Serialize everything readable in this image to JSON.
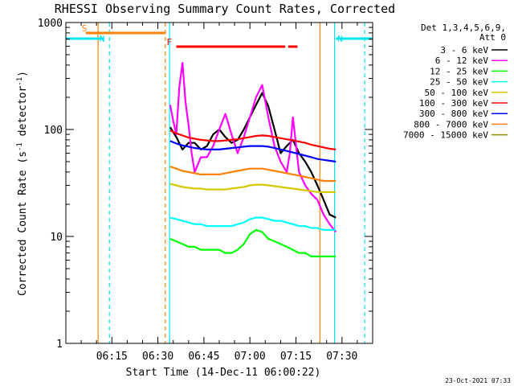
{
  "chart_data": {
    "type": "line",
    "title": "RHESSI Observing Summary Count Rates, Corrected",
    "xlabel": "Start Time (14-Dec-11 06:00:22)",
    "ylabel": "Corrected Count Rate (s",
    "ylabel_sup1": "-1",
    "ylabel_mid": " detector",
    "ylabel_sup2": "-1",
    "ylabel_end": ")",
    "y_scale": "log",
    "ylim": [
      1,
      1000
    ],
    "xlim_minutes": [
      0,
      100
    ],
    "x_tick_minutes": [
      15,
      30,
      45,
      60,
      75,
      90
    ],
    "x_tick_labels": [
      "06:15",
      "06:30",
      "06:45",
      "07:00",
      "07:15",
      "07:30"
    ],
    "y_tick_values": [
      1,
      10,
      100,
      1000
    ],
    "y_tick_labels": [
      "1",
      "10",
      "100",
      "1000"
    ],
    "legend": {
      "header1": "Det 1,3,4,5,6,9,",
      "header2": "Att 0",
      "placement": "right"
    },
    "timestamp": "23-Oct-2021 07:33",
    "flags": [
      {
        "label": "S",
        "color": "#ff7f00",
        "start_min": 6.5,
        "end_min": 32.5
      },
      {
        "label": "N",
        "color": "#00e5ee",
        "start_min": 0,
        "end_min": 12.5
      },
      {
        "label": "N",
        "color": "#00e5ee",
        "start_min": 88,
        "end_min": 100
      },
      {
        "label": "F",
        "color": "#ff0000",
        "start_min": 36,
        "end_min": 71.5
      },
      {
        "label": "",
        "color": "#ff0000",
        "start_min": 72.5,
        "end_min": 75.5
      }
    ],
    "vlines": [
      {
        "min": 10.5,
        "color": "#ff7f00",
        "style": "solid"
      },
      {
        "min": 14.2,
        "color": "#00e5ee",
        "style": "dashed"
      },
      {
        "min": 32.4,
        "color": "#ff7f00",
        "style": "dashed"
      },
      {
        "min": 33.8,
        "color": "#00e5ee",
        "style": "solid"
      },
      {
        "min": 82.8,
        "color": "#ff7f00",
        "style": "solid"
      },
      {
        "min": 87.6,
        "color": "#00e5ee",
        "style": "solid"
      },
      {
        "min": 97.4,
        "color": "#00e5ee",
        "style": "dashed"
      }
    ],
    "series": [
      {
        "name": "3 - 6 keV",
        "color": "#000000",
        "x": [
          34,
          36,
          38,
          40,
          42,
          44,
          46,
          48,
          50,
          52,
          54,
          56,
          58,
          60,
          62,
          64,
          66,
          68,
          70,
          72,
          74,
          76,
          78,
          80,
          82,
          84,
          86,
          88
        ],
        "y": [
          105,
          85,
          65,
          75,
          75,
          65,
          70,
          90,
          100,
          85,
          75,
          80,
          100,
          130,
          170,
          220,
          165,
          100,
          60,
          70,
          80,
          60,
          50,
          40,
          30,
          22,
          16,
          15
        ]
      },
      {
        "name": "6 - 12 keV",
        "color": "#ff00ff",
        "x": [
          34,
          35,
          36,
          37,
          38,
          39,
          40,
          41,
          42,
          44,
          46,
          48,
          50,
          52,
          54,
          56,
          58,
          60,
          62,
          64,
          66,
          68,
          70,
          72,
          73,
          74,
          76,
          78,
          80,
          82,
          84,
          86,
          88
        ],
        "y": [
          170,
          120,
          90,
          250,
          420,
          180,
          110,
          60,
          40,
          55,
          55,
          70,
          100,
          140,
          90,
          60,
          85,
          130,
          200,
          260,
          130,
          70,
          50,
          40,
          60,
          130,
          40,
          30,
          25,
          22,
          16,
          13,
          11
        ]
      },
      {
        "name": "12 - 25 keV",
        "color": "#00ff00",
        "x": [
          34,
          36,
          38,
          40,
          42,
          44,
          46,
          48,
          50,
          52,
          54,
          56,
          58,
          60,
          62,
          64,
          66,
          68,
          70,
          72,
          74,
          76,
          78,
          80,
          82,
          84,
          86,
          88
        ],
        "y": [
          9.5,
          9,
          8.5,
          8,
          8,
          7.5,
          7.5,
          7.5,
          7.5,
          7,
          7,
          7.5,
          8.5,
          10.5,
          11.5,
          11,
          9.5,
          9,
          8.5,
          8,
          7.5,
          7,
          7,
          6.5,
          6.5,
          6.5,
          6.5,
          6.5
        ]
      },
      {
        "name": "25 - 50 keV",
        "color": "#00ffff",
        "x": [
          34,
          36,
          38,
          40,
          42,
          44,
          46,
          48,
          50,
          52,
          54,
          56,
          58,
          60,
          62,
          64,
          66,
          68,
          70,
          72,
          74,
          76,
          78,
          80,
          82,
          84,
          86,
          88
        ],
        "y": [
          15,
          14.5,
          14,
          13.5,
          13,
          13,
          12.5,
          12.5,
          12.5,
          12.5,
          12.5,
          13,
          13.5,
          14.5,
          15,
          15,
          14.5,
          14,
          14,
          13.5,
          13,
          12.5,
          12.5,
          12,
          12,
          11.5,
          11.5,
          11.5
        ]
      },
      {
        "name": "50 - 100 keV",
        "color": "#d4c800",
        "x": [
          34,
          36,
          38,
          40,
          42,
          44,
          46,
          48,
          50,
          52,
          54,
          56,
          58,
          60,
          62,
          64,
          66,
          68,
          70,
          72,
          74,
          76,
          78,
          80,
          82,
          84,
          86,
          88
        ],
        "y": [
          31,
          30,
          29,
          28.5,
          28,
          28,
          27.5,
          27.5,
          27.5,
          27.5,
          28,
          28.5,
          29,
          30,
          30.5,
          30.5,
          30,
          29.5,
          29,
          28.5,
          28,
          27.5,
          27,
          26.5,
          26,
          26,
          26,
          26
        ]
      },
      {
        "name": "100 - 300 keV",
        "color": "#ff0000",
        "x": [
          34,
          36,
          38,
          40,
          42,
          44,
          46,
          48,
          50,
          52,
          54,
          56,
          58,
          60,
          62,
          64,
          66,
          68,
          70,
          72,
          74,
          76,
          78,
          80,
          82,
          84,
          86,
          88
        ],
        "y": [
          98,
          92,
          88,
          84,
          82,
          80,
          79,
          78,
          78,
          79,
          80,
          81,
          83,
          85,
          87,
          88,
          87,
          85,
          83,
          81,
          79,
          77,
          75,
          72,
          70,
          68,
          66,
          65
        ]
      },
      {
        "name": "300 - 800 keV",
        "color": "#0000ff",
        "x": [
          34,
          36,
          38,
          40,
          42,
          44,
          46,
          48,
          50,
          52,
          54,
          56,
          58,
          60,
          62,
          64,
          66,
          68,
          70,
          72,
          74,
          76,
          78,
          80,
          82,
          84,
          86,
          88
        ],
        "y": [
          78,
          74,
          71,
          69,
          67,
          66,
          65,
          65,
          65,
          66,
          67,
          68,
          69,
          70,
          70,
          70,
          69,
          67,
          65,
          63,
          61,
          59,
          57,
          55,
          53,
          52,
          51,
          50
        ]
      },
      {
        "name": "800 - 7000 keV",
        "color": "#ff8000",
        "x": [
          34,
          36,
          38,
          40,
          42,
          44,
          46,
          48,
          50,
          52,
          54,
          56,
          58,
          60,
          62,
          64,
          66,
          68,
          70,
          72,
          74,
          76,
          78,
          80,
          82,
          84,
          86,
          88
        ],
        "y": [
          45,
          43,
          41,
          40,
          39,
          38,
          38,
          38,
          38,
          39,
          40,
          41,
          42,
          43,
          43,
          43,
          42,
          41,
          40,
          39,
          38,
          37,
          36,
          35,
          34,
          33,
          33,
          33
        ]
      },
      {
        "name": "7000 - 15000 keV",
        "color": "#8b8b00",
        "x": [],
        "y": []
      }
    ]
  }
}
